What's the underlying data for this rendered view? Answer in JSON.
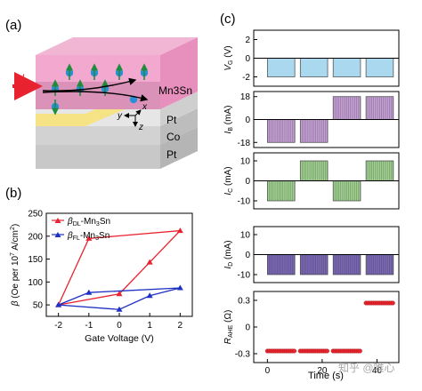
{
  "panels": {
    "a": {
      "label": "(a)",
      "current_label": "I",
      "material": "Mn3Sn",
      "layers": [
        "Pt",
        "Co",
        "Pt"
      ],
      "axis_y": "y",
      "axis_x": "x",
      "axis_z": "z"
    },
    "b": {
      "label": "(b)"
    },
    "c": {
      "label": "(c)"
    }
  },
  "watermark": "知乎 @唯心",
  "colors": {
    "dl_series": "#e8222e",
    "fl_series": "#1e2fc4",
    "vg_fill": "#a9d8ef",
    "ib_fill": "#c59fd6",
    "ic_fill": "#9fd18f",
    "id_fill": "#7a67b5",
    "rahe_point": "#e8262e",
    "top_block": "#f3a9cf",
    "yellow": "#f6e27a"
  },
  "chart_data": [
    {
      "type": "line",
      "panel": "b",
      "xlabel": "Gate Voltage (V)",
      "ylabel": "β (Oe per 10^7 A/cm²)",
      "xlim": [
        -2.4,
        2.4
      ],
      "ylim": [
        25,
        250
      ],
      "xticks": [
        -2,
        -1,
        0,
        1,
        2
      ],
      "yticks": [
        50,
        100,
        150,
        200,
        250
      ],
      "legend_position": "top-left",
      "series": [
        {
          "name": "β_DL-Mn3Sn",
          "marker": "triangle",
          "points": [
            [
              -2,
              50
            ],
            [
              -1,
              195
            ],
            [
              2,
              212
            ],
            [
              1,
              143
            ],
            [
              0,
              74
            ],
            [
              -2,
              50
            ]
          ]
        },
        {
          "name": "β_FL-Mn3Sn",
          "marker": "triangle",
          "points": [
            [
              -2,
              50
            ],
            [
              -1,
              77
            ],
            [
              2,
              87
            ],
            [
              1,
              70
            ],
            [
              0,
              40
            ],
            [
              -2,
              50
            ]
          ]
        }
      ]
    },
    {
      "type": "bar",
      "panel": "c",
      "xlabel": "Time (s)",
      "xlim": [
        -5,
        48
      ],
      "xticks": [
        0,
        20,
        40
      ],
      "subplots": [
        {
          "ylabel": "V_G (V)",
          "ticks": [
            "2",
            "0",
            "-2"
          ],
          "tick_values": [
            2,
            0,
            -2
          ],
          "ylim": [
            -3,
            3
          ],
          "pulses": [
            [
              0,
              10,
              -2
            ],
            [
              12,
              22,
              -2
            ],
            [
              24,
              34,
              -2
            ],
            [
              36,
              46,
              -2
            ]
          ]
        },
        {
          "ylabel": "I_B (mA)",
          "ticks": [
            "18",
            "0",
            "-18"
          ],
          "tick_values": [
            18,
            0,
            -18
          ],
          "ylim": [
            -22,
            22
          ],
          "pulses": [
            [
              0,
              10,
              -18
            ],
            [
              12,
              22,
              -18
            ],
            [
              24,
              34,
              18
            ],
            [
              36,
              46,
              18
            ]
          ]
        },
        {
          "ylabel": "I_C (mA)",
          "ticks": [
            "10",
            "0",
            "-10"
          ],
          "tick_values": [
            10,
            0,
            -10
          ],
          "ylim": [
            -14,
            14
          ],
          "pulses": [
            [
              0,
              10,
              -10
            ],
            [
              12,
              22,
              10
            ],
            [
              24,
              34,
              -10
            ],
            [
              36,
              46,
              10
            ]
          ]
        },
        {
          "ylabel": "I_D (mA)",
          "ticks": [
            "10",
            "0",
            "-10"
          ],
          "tick_values": [
            10,
            0,
            -10
          ],
          "ylim": [
            -14,
            14
          ],
          "pulses": [
            [
              0,
              10,
              -10
            ],
            [
              12,
              22,
              -10
            ],
            [
              24,
              34,
              -10
            ],
            [
              36,
              46,
              -10
            ]
          ]
        }
      ],
      "resistance": {
        "ylabel": "R_AHE (Ω)",
        "ticks": [
          "0.3",
          "0",
          "-0.3"
        ],
        "tick_values": [
          0.3,
          0,
          -0.3
        ],
        "ylim": [
          -0.4,
          0.4
        ],
        "segments": [
          [
            0,
            10,
            -0.27
          ],
          [
            12,
            22,
            -0.27
          ],
          [
            24,
            34,
            -0.27
          ],
          [
            36,
            46,
            0.27
          ]
        ]
      }
    }
  ]
}
